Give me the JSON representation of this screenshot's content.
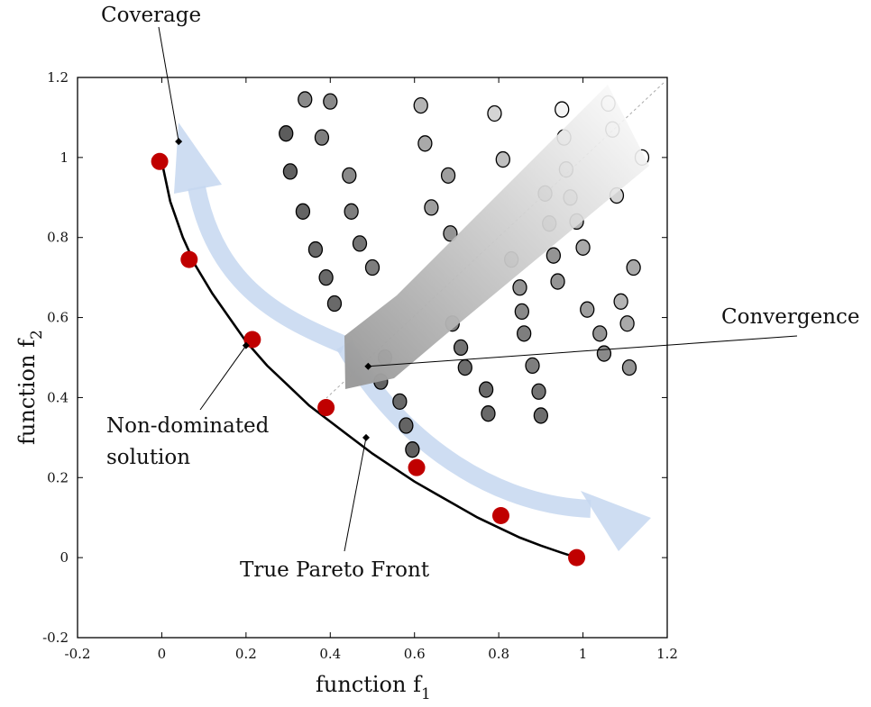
{
  "chart_data": {
    "type": "scatter",
    "xlabel": "function f",
    "xlabel_sub": "1",
    "ylabel": "function f",
    "ylabel_sub": "2",
    "xlim": [
      -0.2,
      1.2
    ],
    "ylim": [
      -0.2,
      1.2
    ],
    "xticks": [
      -0.2,
      0,
      0.2,
      0.4,
      0.6,
      0.8,
      1,
      1.2
    ],
    "xtick_labels": [
      "-0.2",
      "0",
      "0.2",
      "0.4",
      "0.6",
      "0.8",
      "1",
      "1.2"
    ],
    "yticks": [
      -0.2,
      0,
      0.2,
      0.4,
      0.6,
      0.8,
      1,
      1.2
    ],
    "ytick_labels": [
      "-0.2",
      "0",
      "0.2",
      "0.4",
      "0.6",
      "0.8",
      "1",
      "1.2"
    ],
    "grid": false,
    "pareto_front": {
      "x": [
        0.0,
        0.02,
        0.05,
        0.08,
        0.12,
        0.16,
        0.2,
        0.25,
        0.3,
        0.35,
        0.4,
        0.45,
        0.5,
        0.55,
        0.6,
        0.65,
        0.7,
        0.75,
        0.8,
        0.85,
        0.9,
        0.95,
        0.985
      ],
      "y": [
        0.99,
        0.89,
        0.8,
        0.73,
        0.66,
        0.6,
        0.54,
        0.48,
        0.43,
        0.38,
        0.34,
        0.3,
        0.26,
        0.225,
        0.19,
        0.16,
        0.13,
        0.1,
        0.075,
        0.05,
        0.03,
        0.012,
        0.0
      ]
    },
    "non_dominated_solutions": {
      "color": "#c00000",
      "x": [
        -0.005,
        0.065,
        0.215,
        0.39,
        0.605,
        0.805,
        0.985
      ],
      "y": [
        0.99,
        0.745,
        0.545,
        0.375,
        0.225,
        0.105,
        0.0
      ]
    },
    "population": {
      "x": [
        0.295,
        0.305,
        0.335,
        0.365,
        0.39,
        0.34,
        0.38,
        0.41,
        0.445,
        0.45,
        0.47,
        0.4,
        0.5,
        0.53,
        0.52,
        0.565,
        0.58,
        0.595,
        0.615,
        0.625,
        0.64,
        0.68,
        0.685,
        0.69,
        0.71,
        0.72,
        0.77,
        0.775,
        0.79,
        0.81,
        0.83,
        0.85,
        0.855,
        0.86,
        0.88,
        0.895,
        0.9,
        0.91,
        0.92,
        0.93,
        0.94,
        0.95,
        0.955,
        0.96,
        0.97,
        0.985,
        1.0,
        1.01,
        1.04,
        1.05,
        1.06,
        1.07,
        1.08,
        1.09,
        1.105,
        1.11,
        1.12,
        1.14
      ],
      "y": [
        1.06,
        0.965,
        0.865,
        0.77,
        0.7,
        1.145,
        1.05,
        0.635,
        0.955,
        0.865,
        0.785,
        1.14,
        0.725,
        0.5,
        0.44,
        0.39,
        0.33,
        0.27,
        1.13,
        1.035,
        0.875,
        0.955,
        0.81,
        0.585,
        0.525,
        0.475,
        0.42,
        0.36,
        1.11,
        0.995,
        0.745,
        0.675,
        0.615,
        0.56,
        0.48,
        0.415,
        0.355,
        0.91,
        0.835,
        0.755,
        0.69,
        1.12,
        1.05,
        0.97,
        0.9,
        0.84,
        0.775,
        0.62,
        0.56,
        0.51,
        1.135,
        1.07,
        0.905,
        0.64,
        0.585,
        0.475,
        0.725,
        1.0
      ],
      "shade": [
        0.24,
        0.26,
        0.28,
        0.3,
        0.3,
        0.45,
        0.4,
        0.3,
        0.45,
        0.4,
        0.35,
        0.45,
        0.4,
        0.3,
        0.28,
        0.3,
        0.28,
        0.26,
        0.65,
        0.6,
        0.55,
        0.55,
        0.5,
        0.4,
        0.35,
        0.32,
        0.3,
        0.3,
        0.8,
        0.7,
        0.55,
        0.5,
        0.45,
        0.4,
        0.4,
        0.35,
        0.32,
        0.6,
        0.55,
        0.5,
        0.5,
        0.95,
        0.9,
        0.8,
        0.7,
        0.65,
        0.6,
        0.55,
        0.5,
        0.45,
        1.0,
        0.95,
        0.8,
        0.65,
        0.6,
        0.5,
        0.6,
        1.0
      ]
    },
    "markers": [
      {
        "name": "coverage-marker",
        "x": 0.04,
        "y": 1.04
      },
      {
        "name": "convergence-marker",
        "x": 0.49,
        "y": 0.478
      },
      {
        "name": "non-dominated-marker",
        "x": 0.2,
        "y": 0.53
      },
      {
        "name": "front-marker",
        "x": 0.485,
        "y": 0.3
      }
    ],
    "annotations": [
      "Coverage",
      "Convergence",
      "Non-dominated",
      "solution",
      "True Pareto Front"
    ]
  },
  "colors": {
    "front": "#000000",
    "coverage_arrow": "#c5d7f0",
    "convergence_arrow_light": "#f7f7f7",
    "convergence_arrow_dark": "#9a9a9a"
  }
}
